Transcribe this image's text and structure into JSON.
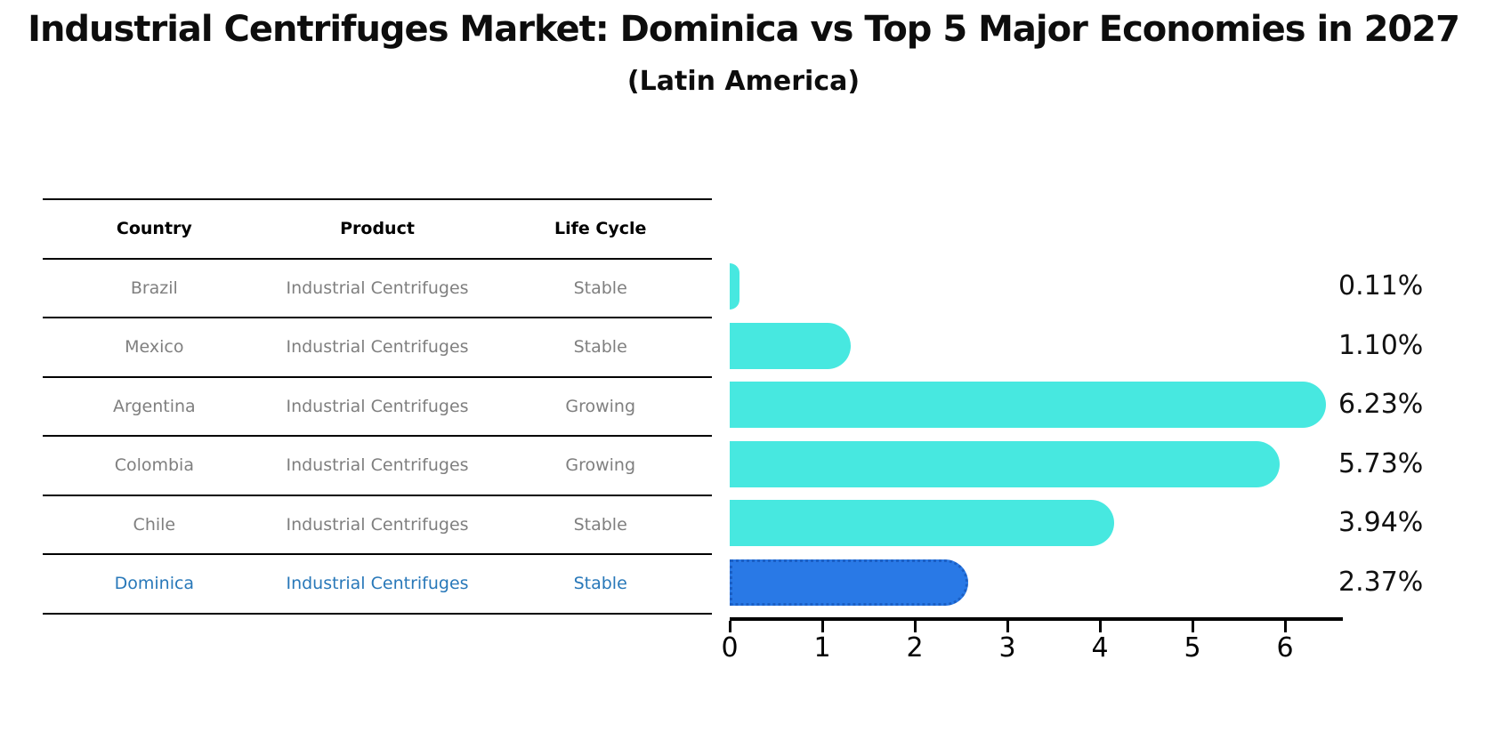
{
  "title": "Industrial Centrifuges Market: Dominica vs Top 5 Major Economies in 2027",
  "subtitle": "(Latin America)",
  "table": {
    "headers": [
      "Country",
      "Product",
      "Life Cycle"
    ],
    "rows": [
      {
        "country": "Brazil",
        "product": "Industrial Centrifuges",
        "life_cycle": "Stable",
        "highlight": false
      },
      {
        "country": "Mexico",
        "product": "Industrial Centrifuges",
        "life_cycle": "Stable",
        "highlight": false
      },
      {
        "country": "Argentina",
        "product": "Industrial Centrifuges",
        "life_cycle": "Growing",
        "highlight": false
      },
      {
        "country": "Colombia",
        "product": "Industrial Centrifuges",
        "life_cycle": "Growing",
        "highlight": false
      },
      {
        "country": "Chile",
        "product": "Industrial Centrifuges",
        "life_cycle": "Stable",
        "highlight": false
      },
      {
        "country": "Dominica",
        "product": "Industrial Centrifuges",
        "life_cycle": "Stable",
        "highlight": true
      }
    ]
  },
  "chart_data": {
    "type": "bar",
    "orientation": "horizontal",
    "title": "Industrial Centrifuges Market: Dominica vs Top 5 Major Economies in 2027",
    "subtitle": "(Latin America)",
    "categories": [
      "Brazil",
      "Mexico",
      "Argentina",
      "Colombia",
      "Chile",
      "Dominica"
    ],
    "values": [
      0.11,
      1.1,
      6.23,
      5.73,
      3.94,
      2.37
    ],
    "labels": [
      "0.11%",
      "1.10%",
      "6.23%",
      "5.73%",
      "3.94%",
      "2.37%"
    ],
    "x_ticks": [
      "0",
      "1",
      "2",
      "3",
      "4",
      "5",
      "6"
    ],
    "xlim": [
      0,
      6.6
    ],
    "grid": false,
    "legend": "none",
    "bar_color": "#47e8e0",
    "highlight_index": 5,
    "highlight_color": "#2979e6",
    "highlight_border_color": "#1b5fc4",
    "highlight_text_color": "#2878b9",
    "value_label_color": "#111111",
    "axis_color": "#000000"
  }
}
